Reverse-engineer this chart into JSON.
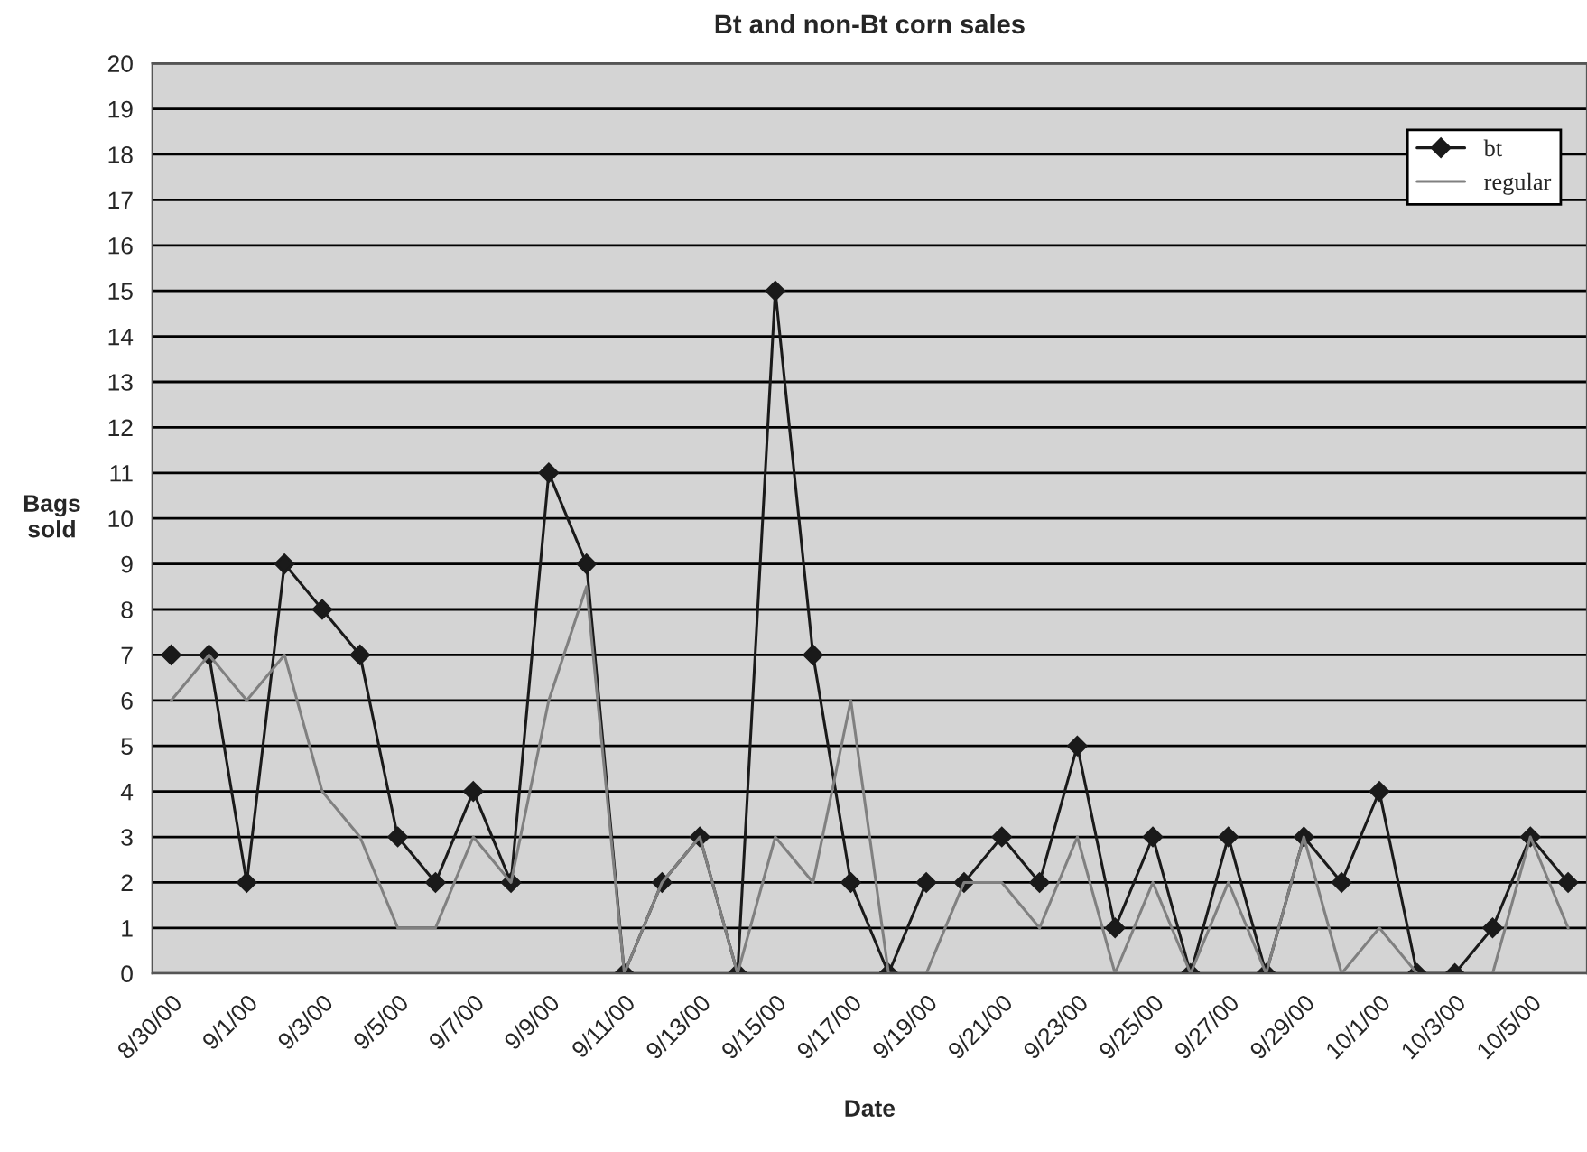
{
  "chart_data": {
    "type": "line",
    "title": "Bt and non-Bt corn sales",
    "xlabel": "Date",
    "ylabel": "Bags\nsold",
    "categories": [
      "8/30/00",
      null,
      "9/1/00",
      null,
      "9/3/00",
      null,
      "9/5/00",
      null,
      "9/7/00",
      null,
      "9/9/00",
      null,
      "9/11/00",
      null,
      "9/13/00",
      null,
      "9/15/00",
      null,
      "9/17/00",
      null,
      "9/19/00",
      null,
      "9/21/00",
      null,
      "9/23/00",
      null,
      "9/25/00",
      null,
      "9/27/00",
      null,
      "9/29/00",
      null,
      "10/1/00",
      null,
      "10/3/00",
      null,
      "10/5/00",
      null
    ],
    "series": [
      {
        "name": "bt",
        "color": "#1a1a1a",
        "marker": "diamond",
        "values": [
          7,
          7,
          2,
          9,
          8,
          7,
          3,
          2,
          4,
          2,
          11,
          9,
          0,
          2,
          3,
          0,
          15,
          7,
          2,
          0,
          2,
          2,
          3,
          2,
          5,
          1,
          3,
          0,
          3,
          0,
          3,
          2,
          4,
          0,
          0,
          1,
          3,
          2
        ]
      },
      {
        "name": "regular",
        "color": "#808080",
        "marker": "none",
        "values": [
          6,
          7,
          6,
          7,
          4,
          3,
          1,
          1,
          3,
          2,
          6,
          8.5,
          0,
          2,
          3,
          0,
          3,
          2,
          6,
          0,
          0,
          2,
          2,
          1,
          3,
          0,
          2,
          0,
          2,
          0,
          3,
          0,
          1,
          0,
          null,
          0,
          3,
          1
        ]
      }
    ],
    "ylim": [
      0,
      20
    ],
    "yticks": [
      0,
      1,
      2,
      3,
      4,
      5,
      6,
      7,
      8,
      9,
      10,
      11,
      12,
      13,
      14,
      15,
      16,
      17,
      18,
      19,
      20
    ],
    "grid": "y",
    "legend": "top right",
    "line_style": "solid"
  }
}
